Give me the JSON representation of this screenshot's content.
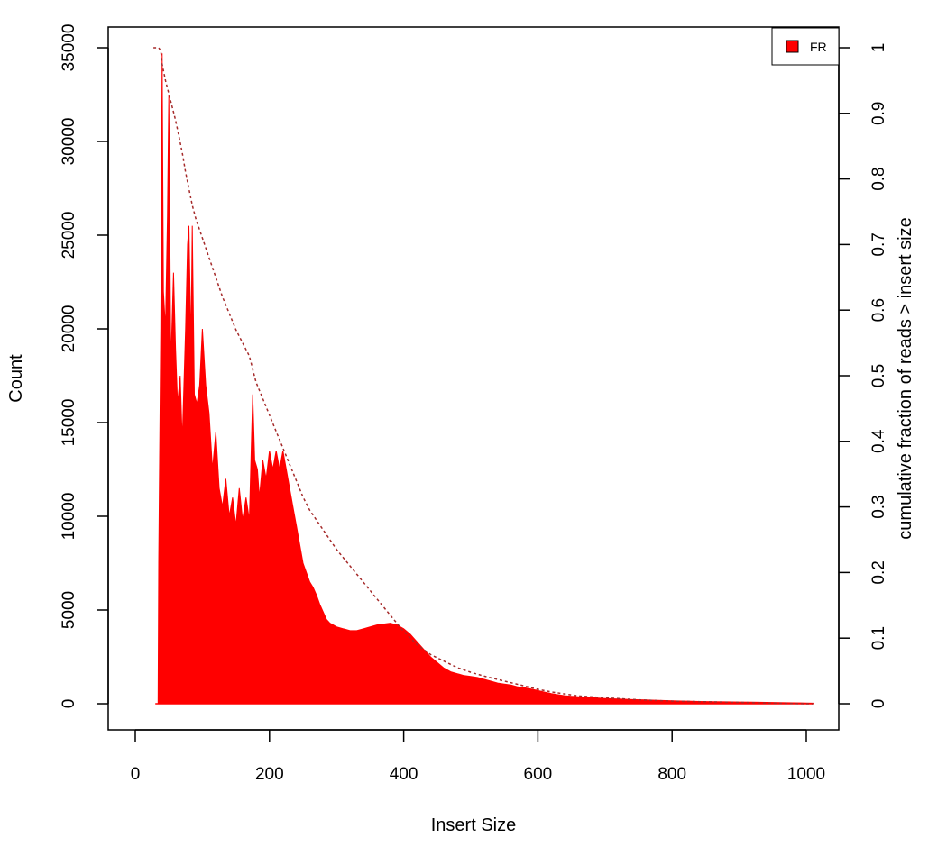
{
  "chart_data": {
    "type": "bar",
    "title": "",
    "xlabel": "Insert Size",
    "ylabel": "Count",
    "y2label": "cumulative fraction of reads > insert size",
    "xlim": [
      0,
      1000
    ],
    "ylim": [
      0,
      35000
    ],
    "y2lim": [
      0,
      1
    ],
    "xticks": [
      0,
      200,
      400,
      600,
      800,
      1000
    ],
    "yticks": [
      0,
      5000,
      10000,
      15000,
      20000,
      25000,
      30000,
      35000
    ],
    "y2ticks": [
      0,
      0.1,
      0.2,
      0.3,
      0.4,
      0.5,
      0.6,
      0.7,
      0.8,
      0.9,
      1
    ],
    "grid": false,
    "legend": {
      "position": "top-right",
      "entries": [
        "FR"
      ]
    },
    "colors": {
      "histogram": "#ff0000",
      "cumulative": "#a52a2a"
    },
    "series": [
      {
        "name": "FR",
        "kind": "histogram",
        "points": [
          [
            30,
            0
          ],
          [
            34,
            0
          ],
          [
            35,
            7500
          ],
          [
            36,
            12000
          ],
          [
            38,
            20000
          ],
          [
            40,
            34700
          ],
          [
            42,
            22000
          ],
          [
            45,
            20000
          ],
          [
            48,
            26000
          ],
          [
            50,
            32500
          ],
          [
            53,
            18000
          ],
          [
            57,
            23000
          ],
          [
            60,
            19000
          ],
          [
            63,
            16000
          ],
          [
            67,
            17500
          ],
          [
            70,
            14000
          ],
          [
            75,
            20000
          ],
          [
            78,
            24500
          ],
          [
            80,
            25500
          ],
          [
            83,
            19000
          ],
          [
            85,
            25500
          ],
          [
            88,
            16500
          ],
          [
            92,
            16000
          ],
          [
            96,
            17000
          ],
          [
            100,
            20000
          ],
          [
            105,
            17000
          ],
          [
            110,
            15500
          ],
          [
            115,
            12500
          ],
          [
            120,
            14500
          ],
          [
            125,
            11500
          ],
          [
            130,
            10500
          ],
          [
            135,
            12000
          ],
          [
            140,
            10000
          ],
          [
            145,
            11000
          ],
          [
            150,
            9500
          ],
          [
            155,
            11500
          ],
          [
            160,
            9800
          ],
          [
            165,
            11000
          ],
          [
            170,
            9800
          ],
          [
            175,
            16500
          ],
          [
            178,
            13000
          ],
          [
            182,
            12500
          ],
          [
            185,
            11000
          ],
          [
            190,
            13000
          ],
          [
            195,
            12000
          ],
          [
            200,
            13500
          ],
          [
            205,
            12500
          ],
          [
            210,
            13500
          ],
          [
            215,
            12500
          ],
          [
            220,
            13500
          ],
          [
            225,
            12500
          ],
          [
            230,
            11500
          ],
          [
            235,
            10500
          ],
          [
            240,
            9500
          ],
          [
            245,
            8500
          ],
          [
            250,
            7500
          ],
          [
            255,
            7000
          ],
          [
            260,
            6500
          ],
          [
            265,
            6200
          ],
          [
            270,
            5800
          ],
          [
            275,
            5300
          ],
          [
            280,
            4900
          ],
          [
            285,
            4500
          ],
          [
            290,
            4300
          ],
          [
            300,
            4100
          ],
          [
            310,
            4000
          ],
          [
            320,
            3900
          ],
          [
            330,
            3900
          ],
          [
            340,
            4000
          ],
          [
            350,
            4100
          ],
          [
            360,
            4200
          ],
          [
            370,
            4250
          ],
          [
            380,
            4300
          ],
          [
            390,
            4200
          ],
          [
            400,
            4000
          ],
          [
            410,
            3700
          ],
          [
            420,
            3300
          ],
          [
            430,
            2900
          ],
          [
            440,
            2500
          ],
          [
            450,
            2200
          ],
          [
            460,
            1900
          ],
          [
            470,
            1700
          ],
          [
            480,
            1600
          ],
          [
            490,
            1500
          ],
          [
            500,
            1450
          ],
          [
            510,
            1400
          ],
          [
            520,
            1300
          ],
          [
            530,
            1200
          ],
          [
            540,
            1100
          ],
          [
            550,
            1050
          ],
          [
            560,
            1000
          ],
          [
            570,
            900
          ],
          [
            580,
            850
          ],
          [
            590,
            780
          ],
          [
            600,
            700
          ],
          [
            610,
            620
          ],
          [
            620,
            540
          ],
          [
            630,
            480
          ],
          [
            640,
            430
          ],
          [
            650,
            400
          ],
          [
            660,
            370
          ],
          [
            670,
            340
          ],
          [
            680,
            320
          ],
          [
            690,
            300
          ],
          [
            700,
            280
          ],
          [
            720,
            250
          ],
          [
            740,
            220
          ],
          [
            760,
            200
          ],
          [
            780,
            180
          ],
          [
            800,
            160
          ],
          [
            820,
            140
          ],
          [
            840,
            120
          ],
          [
            860,
            110
          ],
          [
            880,
            100
          ],
          [
            900,
            90
          ],
          [
            920,
            80
          ],
          [
            940,
            70
          ],
          [
            960,
            60
          ],
          [
            980,
            50
          ],
          [
            1000,
            40
          ],
          [
            1010,
            30
          ]
        ]
      },
      {
        "name": "",
        "kind": "cumulative",
        "axis": "right",
        "points": [
          [
            27,
            1.0
          ],
          [
            35,
            1.0
          ],
          [
            38,
            0.995
          ],
          [
            40,
            0.975
          ],
          [
            45,
            0.95
          ],
          [
            50,
            0.93
          ],
          [
            55,
            0.91
          ],
          [
            60,
            0.89
          ],
          [
            65,
            0.865
          ],
          [
            70,
            0.84
          ],
          [
            75,
            0.81
          ],
          [
            80,
            0.785
          ],
          [
            85,
            0.76
          ],
          [
            90,
            0.74
          ],
          [
            100,
            0.71
          ],
          [
            110,
            0.68
          ],
          [
            120,
            0.65
          ],
          [
            130,
            0.62
          ],
          [
            140,
            0.595
          ],
          [
            150,
            0.57
          ],
          [
            160,
            0.55
          ],
          [
            170,
            0.53
          ],
          [
            180,
            0.49
          ],
          [
            190,
            0.465
          ],
          [
            200,
            0.44
          ],
          [
            210,
            0.415
          ],
          [
            220,
            0.39
          ],
          [
            230,
            0.365
          ],
          [
            240,
            0.34
          ],
          [
            250,
            0.315
          ],
          [
            260,
            0.295
          ],
          [
            270,
            0.28
          ],
          [
            280,
            0.265
          ],
          [
            290,
            0.25
          ],
          [
            300,
            0.235
          ],
          [
            320,
            0.21
          ],
          [
            340,
            0.185
          ],
          [
            360,
            0.16
          ],
          [
            380,
            0.135
          ],
          [
            400,
            0.11
          ],
          [
            420,
            0.09
          ],
          [
            440,
            0.075
          ],
          [
            460,
            0.065
          ],
          [
            480,
            0.055
          ],
          [
            500,
            0.048
          ],
          [
            520,
            0.042
          ],
          [
            540,
            0.037
          ],
          [
            560,
            0.032
          ],
          [
            580,
            0.027
          ],
          [
            600,
            0.022
          ],
          [
            620,
            0.018
          ],
          [
            640,
            0.015
          ],
          [
            660,
            0.012
          ],
          [
            700,
            0.009
          ],
          [
            750,
            0.006
          ],
          [
            800,
            0.004
          ],
          [
            850,
            0.003
          ],
          [
            900,
            0.002
          ],
          [
            950,
            0.001
          ],
          [
            1000,
            0.0
          ],
          [
            1010,
            0.0
          ]
        ]
      }
    ]
  }
}
